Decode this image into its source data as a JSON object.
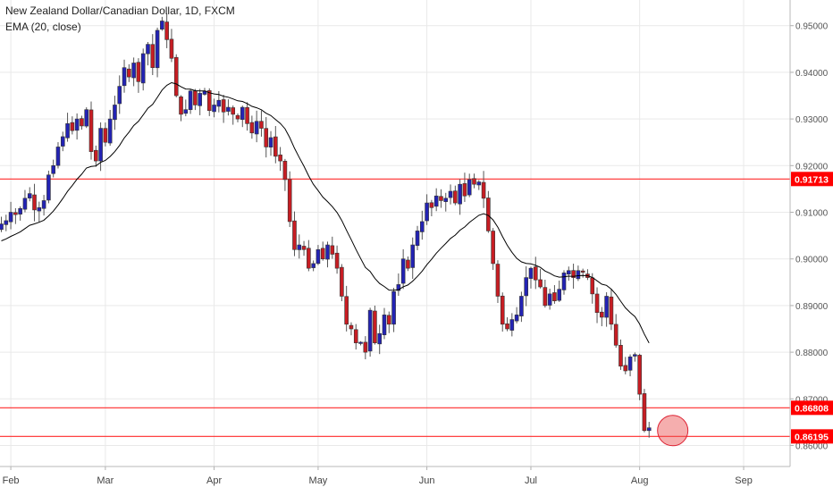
{
  "header": {
    "title": "New Zealand Dollar/Canadian Dollar, 1D, FXCM",
    "indicator": "EMA (20, close)"
  },
  "colors": {
    "up": "#2323b4",
    "down": "#c71d23",
    "level": "#ff2a2a",
    "ema": "#000000",
    "highlight_fill": "#e94b4b",
    "label_bg": "#ff0000",
    "grid": "#e9e9e9",
    "axis_text": "#555555"
  },
  "chart_data": {
    "type": "candlestick",
    "title": "New Zealand Dollar/Canadian Dollar, 1D, FXCM",
    "y_axis": {
      "min": 0.8555,
      "max": 0.9555,
      "ticks": [
        0.86,
        0.87,
        0.88,
        0.89,
        0.9,
        0.91,
        0.92,
        0.93,
        0.94,
        0.95
      ],
      "tick_labels": [
        "0.86000",
        "0.87000",
        "0.88000",
        "0.89000",
        "0.90000",
        "0.91000",
        "0.92000",
        "0.93000",
        "0.94000",
        "0.95000"
      ],
      "position": "right"
    },
    "x_axis": {
      "bar_count": 152,
      "labels": [
        {
          "text": "Feb",
          "index": 2
        },
        {
          "text": "Mar",
          "index": 22
        },
        {
          "text": "Apr",
          "index": 45
        },
        {
          "text": "May",
          "index": 67
        },
        {
          "text": "Jun",
          "index": 90
        },
        {
          "text": "Jul",
          "index": 112
        },
        {
          "text": "Aug",
          "index": 135
        },
        {
          "text": "Sep",
          "index": 157
        }
      ]
    },
    "levels": [
      {
        "value": 0.91713,
        "label": "0.91713"
      },
      {
        "value": 0.86808,
        "label": "0.86808"
      },
      {
        "value": 0.86195,
        "label": "0.86195"
      }
    ],
    "highlight": {
      "index": 142,
      "value": 0.8632
    },
    "ema_label": "EMA (20, close)",
    "close_series": [
      0.9075,
      0.9082,
      0.91,
      0.9095,
      0.9108,
      0.913,
      0.914,
      0.9105,
      0.911,
      0.9125,
      0.918,
      0.92,
      0.924,
      0.9262,
      0.929,
      0.9275,
      0.93,
      0.9285,
      0.932,
      0.923,
      0.921,
      0.928,
      0.925,
      0.93,
      0.933,
      0.937,
      0.941,
      0.939,
      0.942,
      0.938,
      0.944,
      0.946,
      0.941,
      0.949,
      0.951,
      0.947,
      0.943,
      0.935,
      0.931,
      0.932,
      0.936,
      0.933,
      0.9355,
      0.936,
      0.9318,
      0.933,
      0.934,
      0.9315,
      0.9325,
      0.931,
      0.93,
      0.9325,
      0.929,
      0.927,
      0.9295,
      0.928,
      0.924,
      0.926,
      0.922,
      0.921,
      0.917,
      0.908,
      0.902,
      0.903,
      0.902,
      0.898,
      0.899,
      0.902,
      0.9,
      0.903,
      0.901,
      0.898,
      0.892,
      0.886,
      0.885,
      0.882,
      0.882,
      0.88,
      0.889,
      0.882,
      0.884,
      0.888,
      0.886,
      0.893,
      0.8945,
      0.9,
      0.898,
      0.903,
      0.906,
      0.908,
      0.912,
      0.911,
      0.9135,
      0.9125,
      0.913,
      0.9145,
      0.912,
      0.916,
      0.9135,
      0.917,
      0.916,
      0.9165,
      0.913,
      0.906,
      0.899,
      0.892,
      0.886,
      0.885,
      0.887,
      0.888,
      0.892,
      0.896,
      0.898,
      0.8955,
      0.894,
      0.89,
      0.8925,
      0.891,
      0.8935,
      0.897,
      0.8975,
      0.896,
      0.8975,
      0.897,
      0.896,
      0.8925,
      0.8885,
      0.8875,
      0.892,
      0.886,
      0.8815,
      0.877,
      0.876,
      0.879,
      0.8795,
      0.871,
      0.8632,
      0.8638
    ]
  }
}
